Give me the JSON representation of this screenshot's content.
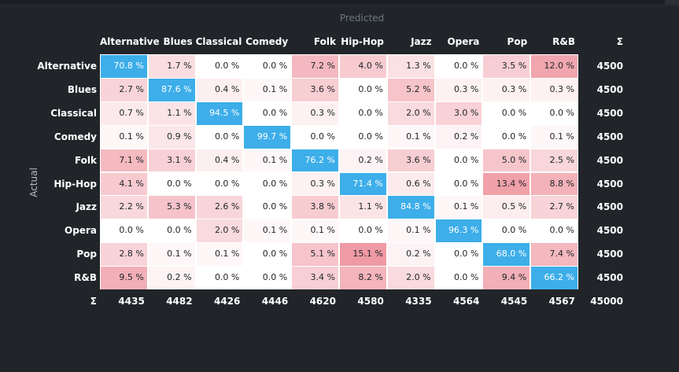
{
  "labels": {
    "predicted": "Predicted",
    "actual": "Actual",
    "sigma": "Σ"
  },
  "colors": {
    "background": "#212529",
    "highlight": "#3daee9",
    "heat_max": "#ef9aa4",
    "cell_min": "#ffffff"
  },
  "chart_data": {
    "type": "heatmap",
    "title": "",
    "xlabel": "Predicted",
    "ylabel": "Actual",
    "categories": [
      "Alternative",
      "Blues",
      "Classical",
      "Comedy",
      "Folk",
      "Hip-Hop",
      "Jazz",
      "Opera",
      "Pop",
      "R&B"
    ],
    "values": [
      [
        "70.8 %",
        "1.7 %",
        "0.0 %",
        "0.0 %",
        "7.2 %",
        "4.0 %",
        "1.3 %",
        "0.0 %",
        "3.5 %",
        "12.0 %"
      ],
      [
        "2.7 %",
        "87.6 %",
        "0.4 %",
        "0.1 %",
        "3.6 %",
        "0.0 %",
        "5.2 %",
        "0.3 %",
        "0.3 %",
        "0.3 %"
      ],
      [
        "0.7 %",
        "1.1 %",
        "94.5 %",
        "0.0 %",
        "0.3 %",
        "0.0 %",
        "2.0 %",
        "3.0 %",
        "0.0 %",
        "0.0 %"
      ],
      [
        "0.1 %",
        "0.9 %",
        "0.0 %",
        "99.7 %",
        "0.0 %",
        "0.0 %",
        "0.1 %",
        "0.2 %",
        "0.0 %",
        "0.1 %"
      ],
      [
        "7.1 %",
        "3.1 %",
        "0.4 %",
        "0.1 %",
        "76.2 %",
        "0.2 %",
        "3.6 %",
        "0.0 %",
        "5.0 %",
        "2.5 %"
      ],
      [
        "4.1 %",
        "0.0 %",
        "0.0 %",
        "0.0 %",
        "0.3 %",
        "71.4 %",
        "0.6 %",
        "0.0 %",
        "13.4 %",
        "8.8 %"
      ],
      [
        "2.2 %",
        "5.3 %",
        "2.6 %",
        "0.0 %",
        "3.8 %",
        "1.1 %",
        "84.8 %",
        "0.1 %",
        "0.5 %",
        "2.7 %"
      ],
      [
        "0.0 %",
        "0.0 %",
        "2.0 %",
        "0.1 %",
        "0.1 %",
        "0.0 %",
        "0.1 %",
        "96.3 %",
        "0.0 %",
        "0.0 %"
      ],
      [
        "2.8 %",
        "0.1 %",
        "0.1 %",
        "0.0 %",
        "5.1 %",
        "15.1 %",
        "0.2 %",
        "0.0 %",
        "68.0 %",
        "7.4 %"
      ],
      [
        "9.5 %",
        "0.2 %",
        "0.0 %",
        "0.0 %",
        "3.4 %",
        "8.2 %",
        "2.0 %",
        "0.0 %",
        "9.4 %",
        "66.2 %"
      ]
    ],
    "row_sums": [
      "4500",
      "4500",
      "4500",
      "4500",
      "4500",
      "4500",
      "4500",
      "4500",
      "4500",
      "4500"
    ],
    "col_sums": [
      "4435",
      "4482",
      "4426",
      "4446",
      "4620",
      "4580",
      "4335",
      "4564",
      "4545",
      "4567"
    ],
    "total": "45000"
  }
}
